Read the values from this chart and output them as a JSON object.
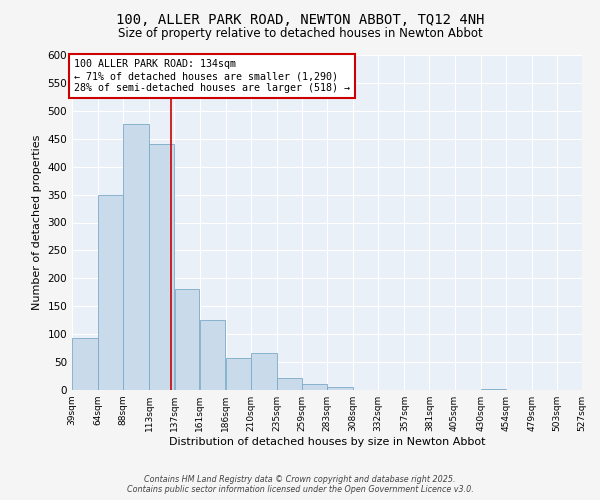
{
  "title": "100, ALLER PARK ROAD, NEWTON ABBOT, TQ12 4NH",
  "subtitle": "Size of property relative to detached houses in Newton Abbot",
  "xlabel": "Distribution of detached houses by size in Newton Abbot",
  "ylabel": "Number of detached properties",
  "bar_color": "#c9daea",
  "bar_edge_color": "#7baac8",
  "background_color": "#eaf0f8",
  "grid_color": "#ffffff",
  "vline_x": 134,
  "vline_color": "#cc0000",
  "annotation_line1": "100 ALLER PARK ROAD: 134sqm",
  "annotation_line2": "← 71% of detached houses are smaller (1,290)",
  "annotation_line3": "28% of semi-detached houses are larger (518) →",
  "annotation_box_color": "#cc0000",
  "bin_edges": [
    39,
    64,
    88,
    113,
    137,
    161,
    186,
    210,
    235,
    259,
    283,
    308,
    332,
    357,
    381,
    405,
    430,
    454,
    479,
    503,
    527
  ],
  "bar_heights": [
    93,
    350,
    477,
    440,
    181,
    125,
    58,
    66,
    22,
    10,
    6,
    0,
    0,
    0,
    0,
    0,
    1,
    0,
    0,
    0
  ],
  "ylim": [
    0,
    600
  ],
  "yticks": [
    0,
    50,
    100,
    150,
    200,
    250,
    300,
    350,
    400,
    450,
    500,
    550,
    600
  ],
  "footer_line1": "Contains HM Land Registry data © Crown copyright and database right 2025.",
  "footer_line2": "Contains public sector information licensed under the Open Government Licence v3.0."
}
